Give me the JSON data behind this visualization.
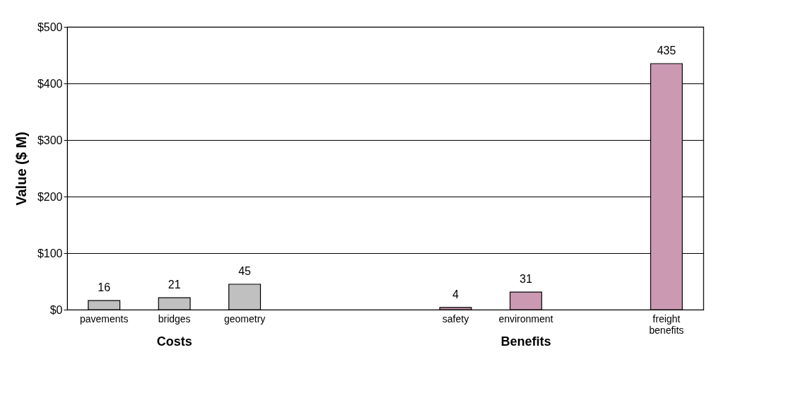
{
  "chart_data": {
    "type": "bar",
    "ylabel": "Value ($ M)",
    "categories": [
      "pavements",
      "bridges",
      "geometry",
      null,
      null,
      "safety",
      "environment",
      null,
      "freight benefits"
    ],
    "series": [
      {
        "name": "Costs",
        "color": "#c0c0c0",
        "values": [
          16,
          21,
          45,
          null,
          null,
          null,
          null,
          null,
          null
        ]
      },
      {
        "name": "Benefits",
        "color": "#cc99b3",
        "values": [
          null,
          null,
          null,
          null,
          null,
          4,
          31,
          null,
          435
        ]
      }
    ],
    "ylim": [
      0,
      500
    ],
    "yticks": [
      {
        "value": 0,
        "label": "$0"
      },
      {
        "value": 100,
        "label": "$100"
      },
      {
        "value": 200,
        "label": "$200"
      },
      {
        "value": 300,
        "label": "$300"
      },
      {
        "value": 400,
        "label": "$400"
      },
      {
        "value": 500,
        "label": "$500"
      }
    ],
    "grid": "y",
    "data_labels": true,
    "legend": false
  }
}
